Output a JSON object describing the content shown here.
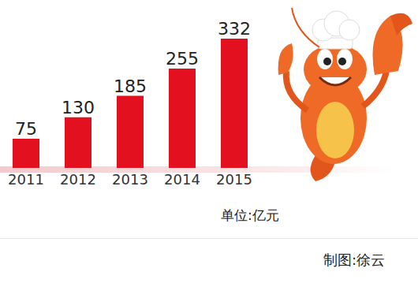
{
  "chart_data": {
    "type": "bar",
    "categories": [
      "2011",
      "2012",
      "2013",
      "2014",
      "2015"
    ],
    "values": [
      75,
      130,
      185,
      255,
      332
    ],
    "color": "#e3101f",
    "ylim": [
      0,
      350
    ],
    "data_labels": true,
    "tick_labels": "x",
    "grid": false,
    "annotations": [
      "单位:亿元",
      "制图:徐云"
    ]
  }
}
